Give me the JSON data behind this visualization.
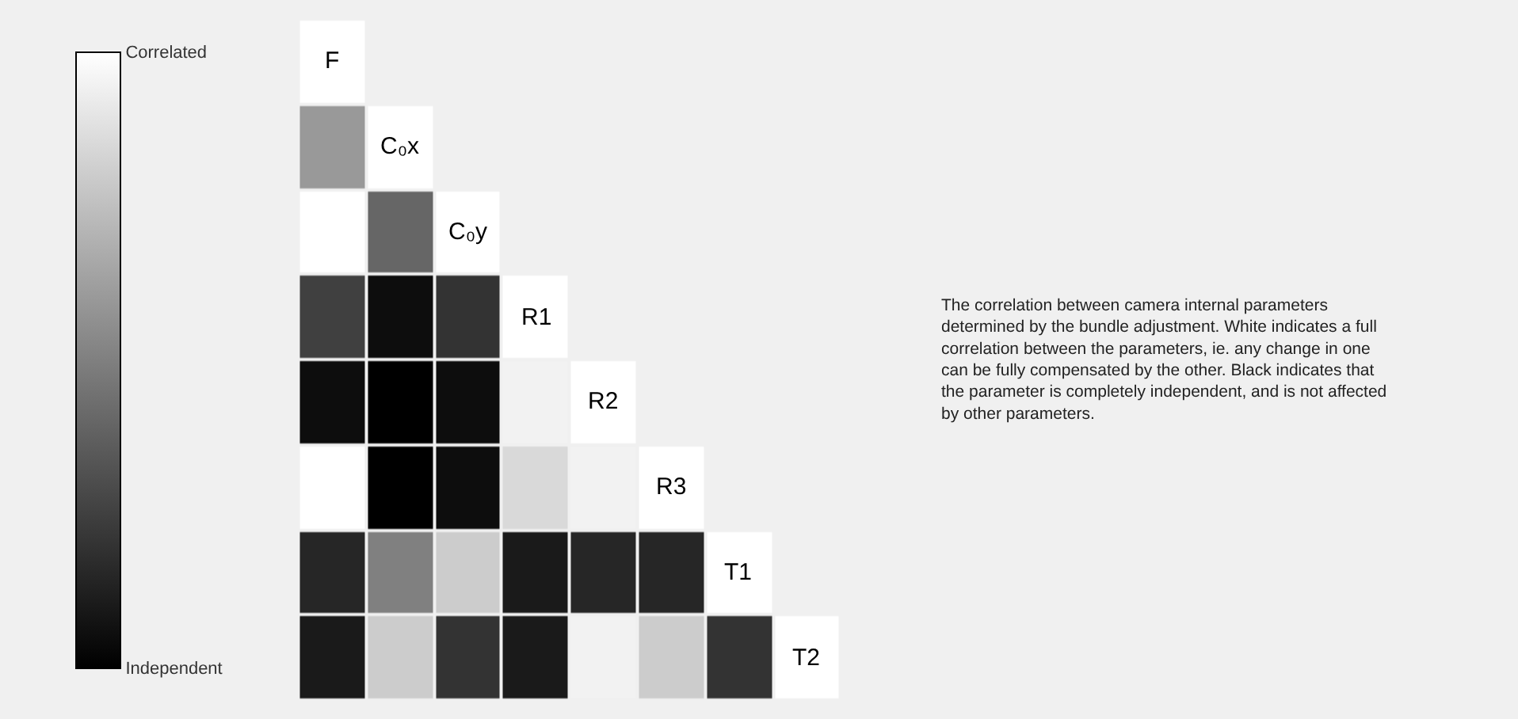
{
  "chart_data": {
    "type": "heatmap",
    "categories": [
      null,
      null,
      null,
      null,
      null,
      null,
      null,
      null
    ],
    "y_categories": [
      null,
      null,
      null,
      null,
      null,
      null,
      null,
      null
    ],
    "cells": [
      [
        1,
        null,
        null,
        null,
        null,
        null,
        null,
        null
      ],
      [
        0.6,
        1,
        null,
        null,
        null,
        null,
        null,
        null
      ],
      [
        1,
        0.4,
        1,
        null,
        null,
        null,
        null,
        null
      ],
      [
        0.25,
        0.05,
        0.2,
        1,
        null,
        null,
        null,
        null
      ],
      [
        0.05,
        0.0,
        0.05,
        0.95,
        1,
        null,
        null,
        null
      ],
      [
        1,
        0.0,
        0.05,
        0.85,
        0.95,
        1,
        null,
        null
      ],
      [
        0.15,
        0.5,
        0.8,
        0.1,
        0.15,
        0.15,
        1,
        null
      ],
      [
        0.1,
        0.8,
        0.2,
        0.1,
        0.95,
        0.8,
        0.2,
        1
      ]
    ],
    "cell_labels": [
      [
        "F",
        null,
        null,
        null,
        null,
        null,
        null,
        null
      ],
      [
        null,
        "C₀x",
        null,
        null,
        null,
        null,
        null,
        null
      ],
      [
        null,
        null,
        "C₀y",
        null,
        null,
        null,
        null,
        null
      ],
      [
        null,
        null,
        null,
        "R1",
        null,
        null,
        null,
        null
      ],
      [
        null,
        null,
        null,
        null,
        "R2",
        null,
        null,
        null
      ],
      [
        null,
        null,
        null,
        null,
        null,
        "R3",
        null,
        null
      ],
      [
        null,
        null,
        null,
        null,
        null,
        null,
        "T1",
        null
      ],
      [
        null,
        null,
        null,
        null,
        null,
        null,
        null,
        "T2"
      ]
    ],
    "clim": [
      0,
      1
    ],
    "cticks": [
      {
        "value": 0,
        "label": "Independent"
      },
      {
        "value": 1,
        "label": "Correlated"
      }
    ],
    "annotations": [
      "The correlation between camera internal parameters determined by the bundle adjustment. White indicates a full correlation between the parameters, ie. any change in one can be fully compensated by the other. Black indicates that the parameter is completely independent, and is not affected by other parameters."
    ]
  }
}
